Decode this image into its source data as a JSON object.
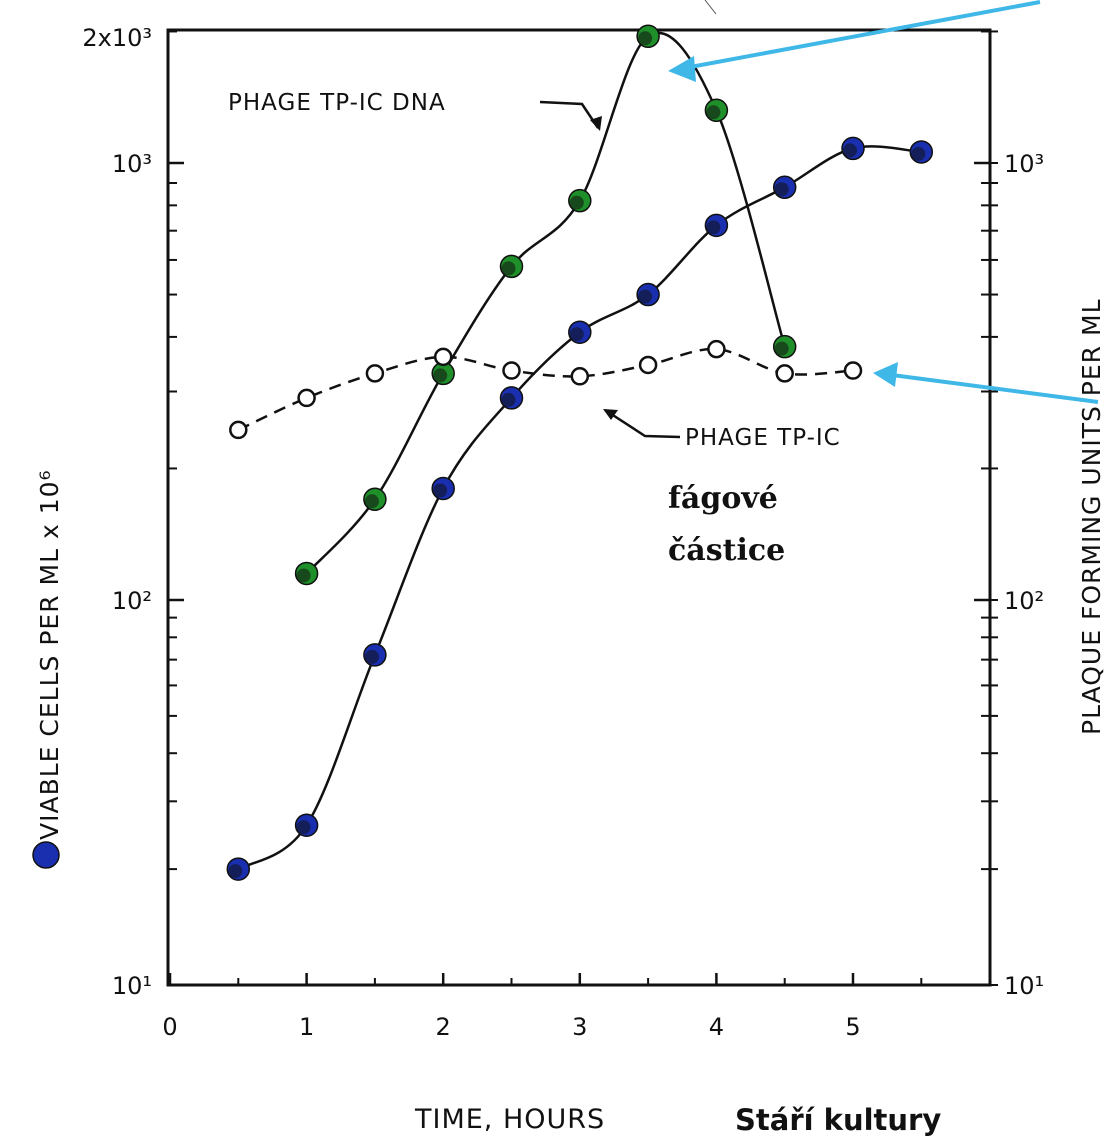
{
  "chart_data": {
    "type": "line",
    "xlabel": "TIME, HOURS",
    "xlabel_extra": "Stáří kultury",
    "ylabel_left": "VIABLE CELLS PER ML x 10⁶",
    "ylabel_right": "PLAQUE FORMING UNITS PER ML",
    "xlim": [
      0,
      6
    ],
    "ylim": [
      10,
      2000
    ],
    "yscale": "log",
    "x_ticks": [
      0,
      1,
      2,
      3,
      4,
      5
    ],
    "x_tick_labels": [
      "0",
      "1",
      "2",
      "3",
      "4",
      "5"
    ],
    "y_left_tick_labels": [
      {
        "value": 10,
        "label": "10¹"
      },
      {
        "value": 100,
        "label": "10²"
      },
      {
        "value": 1000,
        "label": "10³"
      },
      {
        "value": 2000,
        "label": "2x10³"
      }
    ],
    "y_right_tick_labels": [
      {
        "value": 10,
        "label": "10¹"
      },
      {
        "value": 100,
        "label": "10²"
      },
      {
        "value": 1000,
        "label": "10³"
      }
    ],
    "series": [
      {
        "name": "PHAGE TP-IC DNA",
        "marker": "filled-green",
        "color": "#1f8f2a",
        "x": [
          1,
          1.5,
          2,
          2.5,
          3,
          3.5,
          4,
          4.5
        ],
        "y": [
          115,
          170,
          330,
          580,
          820,
          1950,
          1320,
          380
        ]
      },
      {
        "name": "PHAGE TP-IC",
        "marker": "open-circle",
        "dashed": true,
        "x": [
          0.5,
          1,
          1.5,
          2,
          2.5,
          3,
          3.5,
          4,
          4.5,
          5
        ],
        "y": [
          245,
          290,
          330,
          360,
          335,
          325,
          345,
          375,
          330,
          335
        ]
      },
      {
        "name": "",
        "marker": "filled-blue",
        "color": "#1a2fb0",
        "x": [
          0.5,
          1,
          1.5,
          2,
          2.5,
          3,
          3.5,
          4,
          4.5,
          5,
          5.5
        ],
        "y": [
          20,
          26,
          72,
          180,
          290,
          410,
          500,
          720,
          880,
          1080,
          1060
        ]
      }
    ],
    "annotations": [
      {
        "text": "fágové",
        "style": "bold"
      },
      {
        "text": "částice",
        "style": "bold"
      }
    ]
  }
}
